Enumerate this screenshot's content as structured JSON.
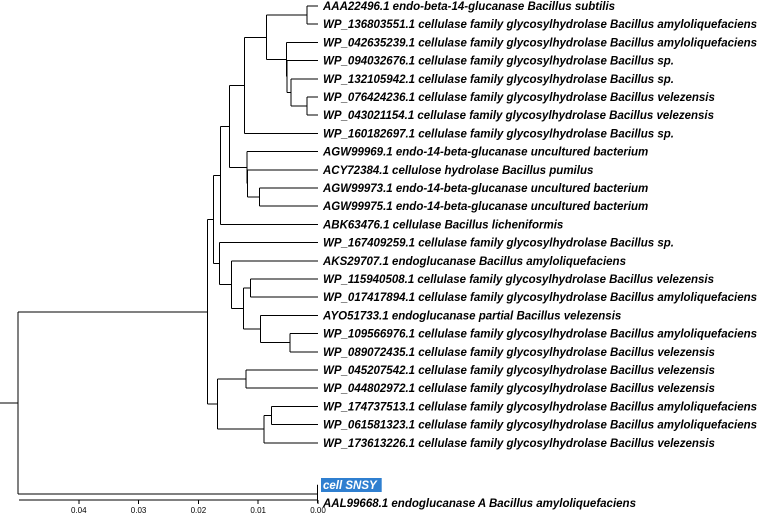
{
  "tree": {
    "leaves": [
      {
        "id": "L1",
        "label": "AAA22496.1 endo-beta-14-glucanase Bacillus subtilis"
      },
      {
        "id": "L2",
        "label": "WP_136803551.1 cellulase family glycosylhydrolase Bacillus amyloliquefaciens"
      },
      {
        "id": "L3",
        "label": "WP_042635239.1 cellulase family glycosylhydrolase Bacillus amyloliquefaciens"
      },
      {
        "id": "L4",
        "label": "WP_094032676.1 cellulase family glycosylhydrolase Bacillus sp."
      },
      {
        "id": "L5",
        "label": "WP_132105942.1 cellulase family glycosylhydrolase Bacillus sp."
      },
      {
        "id": "L6",
        "label": "WP_076424236.1 cellulase family glycosylhydrolase Bacillus velezensis"
      },
      {
        "id": "L7",
        "label": "WP_043021154.1 cellulase family glycosylhydrolase Bacillus velezensis"
      },
      {
        "id": "L8",
        "label": "WP_160182697.1 cellulase family glycosylhydrolase Bacillus sp."
      },
      {
        "id": "L9",
        "label": "AGW99969.1 endo-14-beta-glucanase uncultured bacterium"
      },
      {
        "id": "L10",
        "label": "ACY72384.1 cellulose hydrolase Bacillus pumilus"
      },
      {
        "id": "L11",
        "label": "AGW99973.1 endo-14-beta-glucanase uncultured bacterium"
      },
      {
        "id": "L12",
        "label": "AGW99975.1 endo-14-beta-glucanase uncultured bacterium"
      },
      {
        "id": "L13",
        "label": "ABK63476.1 cellulase Bacillus licheniformis"
      },
      {
        "id": "L14",
        "label": "WP_167409259.1 cellulase family glycosylhydrolase Bacillus sp."
      },
      {
        "id": "L15",
        "label": "AKS29707.1 endoglucanase Bacillus amyloliquefaciens"
      },
      {
        "id": "L16",
        "label": "WP_115940508.1 cellulase family glycosylhydrolase Bacillus velezensis"
      },
      {
        "id": "L17",
        "label": "WP_017417894.1 cellulase family glycosylhydrolase Bacillus amyloliquefaciens"
      },
      {
        "id": "L18",
        "label": "AYO51733.1 endoglucanase partial Bacillus velezensis"
      },
      {
        "id": "L19",
        "label": "WP_109566976.1 cellulase family glycosylhydrolase Bacillus amyloliquefaciens"
      },
      {
        "id": "L20",
        "label": "WP_089072435.1 cellulase family glycosylhydrolase Bacillus velezensis"
      },
      {
        "id": "L21",
        "label": "WP_045207542.1 cellulase family glycosylhydrolase Bacillus velezensis"
      },
      {
        "id": "L22",
        "label": "WP_044802972.1 cellulase family glycosylhydrolase Bacillus velezensis"
      },
      {
        "id": "L23",
        "label": "WP_174737513.1 cellulase family glycosylhydrolase Bacillus amyloliquefaciens"
      },
      {
        "id": "L24",
        "label": "WP_061581323.1 cellulase family glycosylhydrolase Bacillus amyloliquefaciens"
      },
      {
        "id": "L25",
        "label": "WP_173613226.1 cellulase family glycosylhydrolase Bacillus velezensis"
      },
      {
        "id": "L26",
        "label": "cell SNSY",
        "selected": true
      },
      {
        "id": "L27",
        "label": "AAL99668.1 endoglucanase A Bacillus amyloliquefaciens"
      }
    ],
    "structure": [
      "root",
      0.0502,
      [
        [
          "N_A",
          0.0185,
          [
            [
              "N_B",
              0.0175,
              [
                [
                  "N_C",
                  0.0163,
                  [
                    [
                      "N_D",
                      0.0148,
                      [
                        [
                          "N_E",
                          0.0123,
                          [
                            [
                              "N_F",
                              0.0086,
                              [
                                [
                                  "N_G",
                                  0.0018,
                                  [
                                    "L1",
                                    "L2"
                                  ]
                                ],
                                [
                                  "N_H",
                                  0.0053,
                                  [
                                    "L3",
                                    [
                                      "N_I",
                                      0.0052,
                                      [
                                        "L4",
                                        [
                                          "N_J",
                                          0.0045,
                                          [
                                            "L5",
                                            [
                                              "N_K",
                                              0.0018,
                                              [
                                                "L6",
                                                "L7"
                                              ]
                                            ]
                                          ]
                                        ]
                                      ]
                                    ]
                                  ]
                                ]
                              ]
                            ],
                            "L8"
                          ]
                        ],
                        [
                          "N_L",
                          0.0119,
                          [
                            "L9",
                            [
                              "N_M",
                              0.0118,
                              [
                                "L10",
                                [
                                  "N_N",
                                  0.0098,
                                  [
                                    "L11",
                                    "L12"
                                  ]
                                ]
                              ]
                            ]
                          ]
                        ]
                      ]
                    ],
                    "L13"
                  ]
                ],
                [
                  "N_O",
                  0.0165,
                  [
                    "L14",
                    [
                      "N_P",
                      0.0145,
                      [
                        "L15",
                        [
                          "N_Q",
                          0.0125,
                          [
                            [
                              "N_R",
                              0.0113,
                              [
                                "L16",
                                "L17"
                              ]
                            ],
                            [
                              "N_S",
                              0.0096,
                              [
                                "L18",
                                [
                                  "N_T",
                                  0.0047,
                                  [
                                    "L19",
                                    "L20"
                                  ]
                                ]
                              ]
                            ]
                          ]
                        ]
                      ]
                    ]
                  ]
                ]
              ]
            ],
            [
              "N_U",
              0.0168,
              [
                [
                  "N_V",
                  0.012,
                  [
                    "L21",
                    "L22"
                  ]
                ],
                [
                  "N_W",
                  0.009,
                  [
                    [
                      "N_X",
                      0.0078,
                      [
                        "L23",
                        "L24"
                      ]
                    ],
                    "L25"
                  ]
                ]
              ]
            ]
          ]
        ],
        [
          "N_Y",
          0.0001,
          [
            "L26",
            "L27"
          ]
        ]
      ]
    ],
    "root_stub": 0.0058
  },
  "axis": {
    "min": 0.0,
    "max": 0.05,
    "tick_labels": [
      "0.04",
      "0.03",
      "0.02",
      "0.01",
      "0.00"
    ],
    "tick_values": [
      0.04,
      0.03,
      0.02,
      0.01,
      0.0
    ],
    "reversed": true
  },
  "colors": {
    "line": "#000000",
    "selected_bg": "#2f7fd0",
    "selected_text": "#ffffff"
  }
}
